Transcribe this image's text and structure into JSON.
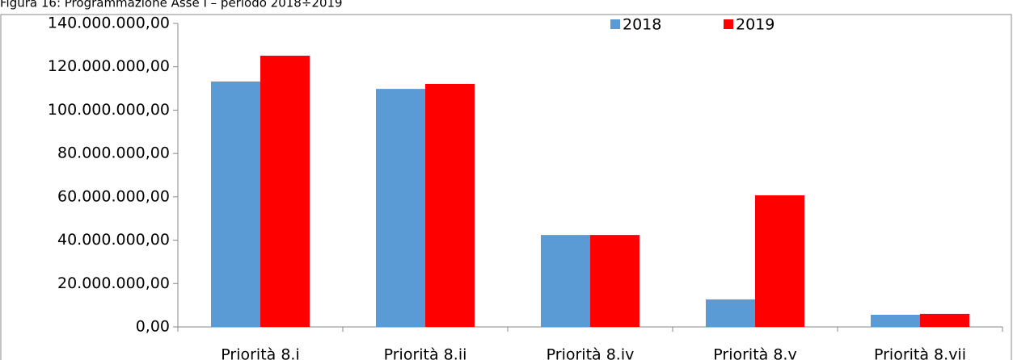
{
  "chart_data": {
    "type": "bar",
    "title": "Figura 16: Programmazione Asse I – periodo 2018÷2019",
    "categories": [
      "Priorità 8.i",
      "Priorità 8.ii",
      "Priorità 8.iv",
      "Priorità 8.v",
      "Priorità 8.vii"
    ],
    "series": [
      {
        "name": "2018",
        "color": "#5b9bd5",
        "values": [
          113200000,
          109800000,
          42400000,
          12700000,
          5600000
        ]
      },
      {
        "name": "2019",
        "color": "#ff0000",
        "values": [
          125100000,
          112100000,
          42400000,
          60700000,
          6000000
        ]
      }
    ],
    "ylim": [
      0,
      140000000
    ],
    "yticks": [
      {
        "value": 0,
        "label": "0,00"
      },
      {
        "value": 20000000,
        "label": "20.000.000,00"
      },
      {
        "value": 40000000,
        "label": "40.000.000,00"
      },
      {
        "value": 60000000,
        "label": "60.000.000,00"
      },
      {
        "value": 80000000,
        "label": "80.000.000,00"
      },
      {
        "value": 100000000,
        "label": "100.000.000,00"
      },
      {
        "value": 120000000,
        "label": "120.000.000,00"
      },
      {
        "value": 140000000,
        "label": "140.000.000,00"
      }
    ],
    "legend": "top"
  }
}
